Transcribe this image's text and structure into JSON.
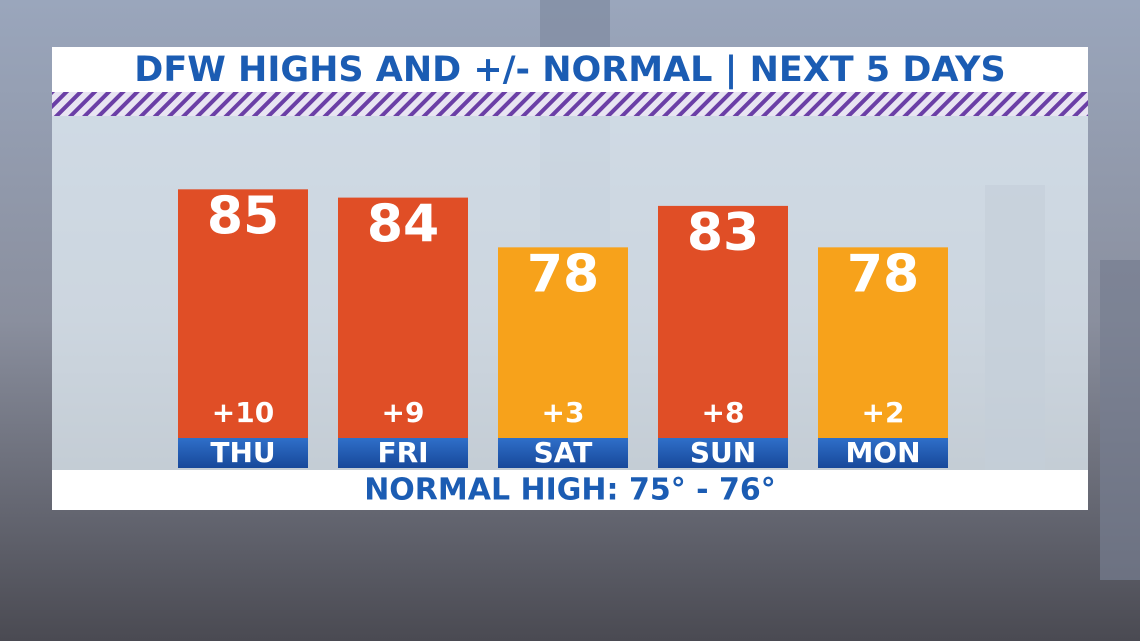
{
  "chart_data": {
    "type": "bar",
    "title": "DFW HIGHS AND +/- NORMAL | NEXT 5 DAYS",
    "categories": [
      "THU",
      "FRI",
      "SAT",
      "SUN",
      "MON"
    ],
    "values": [
      85,
      84,
      78,
      83,
      78
    ],
    "colors": [
      "#e04e26",
      "#e04e26",
      "#f7a21b",
      "#e04e26",
      "#f7a21b"
    ],
    "departures": {
      "values": [
        10,
        9,
        3,
        8,
        2
      ],
      "value_labels": [
        "+10",
        "+9",
        "+3",
        "+8",
        "+2"
      ]
    },
    "footer": "NORMAL HIGH: 75° - 76°",
    "ylim": [
      55,
      93
    ]
  }
}
